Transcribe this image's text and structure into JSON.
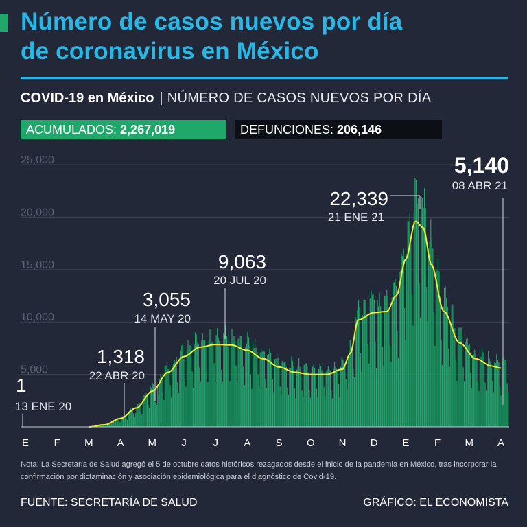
{
  "colors": {
    "background": "#232838",
    "accent": "#27b8e8",
    "bars": "#1fa86a",
    "trend": "#f4ec30",
    "badge_green": "#1fa86a",
    "grid": "#3d4356"
  },
  "header": {
    "title_line1": "Número de casos nuevos por día",
    "title_line2": "de coronavirus en México",
    "subtitle_strong": "COVID-19 en México",
    "subtitle_sep": "|",
    "subtitle_light": "NÚMERO DE CASOS NUEVOS POR DÍA"
  },
  "badges": {
    "accumulated_label": "ACUMULADOS:",
    "accumulated_value": "2,267,019",
    "deaths_label": "DEFUNCIONES:",
    "deaths_value": "206,146"
  },
  "chart_data": {
    "type": "bar",
    "ylim": [
      0,
      25000
    ],
    "yticks": [
      {
        "value": 25000,
        "label": "25,000"
      },
      {
        "value": 20000,
        "label": "20,000"
      },
      {
        "value": 15000,
        "label": "15,000"
      },
      {
        "value": 10000,
        "label": "10,000"
      },
      {
        "value": 5000,
        "label": "5,000"
      }
    ],
    "months": [
      "E",
      "F",
      "M",
      "A",
      "M",
      "J",
      "J",
      "A",
      "S",
      "O",
      "N",
      "D",
      "E",
      "F",
      "M",
      "A"
    ],
    "trend_anchors": [
      {
        "month_pos": 0,
        "value": 0
      },
      {
        "month_pos": 2.0,
        "value": 0
      },
      {
        "month_pos": 2.5,
        "value": 200
      },
      {
        "month_pos": 3.0,
        "value": 800
      },
      {
        "month_pos": 3.5,
        "value": 1800
      },
      {
        "month_pos": 4.0,
        "value": 3400
      },
      {
        "month_pos": 4.5,
        "value": 5200
      },
      {
        "month_pos": 5.0,
        "value": 6700
      },
      {
        "month_pos": 5.5,
        "value": 7600
      },
      {
        "month_pos": 6.0,
        "value": 7850
      },
      {
        "month_pos": 6.5,
        "value": 7800
      },
      {
        "month_pos": 7.0,
        "value": 7300
      },
      {
        "month_pos": 7.5,
        "value": 6500
      },
      {
        "month_pos": 8.0,
        "value": 5700
      },
      {
        "month_pos": 8.5,
        "value": 5200
      },
      {
        "month_pos": 9.0,
        "value": 5000
      },
      {
        "month_pos": 9.5,
        "value": 5000
      },
      {
        "month_pos": 10.0,
        "value": 5500
      },
      {
        "month_pos": 10.25,
        "value": 7000
      },
      {
        "month_pos": 10.5,
        "value": 10200
      },
      {
        "month_pos": 11.0,
        "value": 10900
      },
      {
        "month_pos": 11.4,
        "value": 11000
      },
      {
        "month_pos": 11.7,
        "value": 12500
      },
      {
        "month_pos": 12.0,
        "value": 16000
      },
      {
        "month_pos": 12.3,
        "value": 19600
      },
      {
        "month_pos": 12.55,
        "value": 19000
      },
      {
        "month_pos": 12.8,
        "value": 15500
      },
      {
        "month_pos": 13.2,
        "value": 11000
      },
      {
        "month_pos": 13.7,
        "value": 8000
      },
      {
        "month_pos": 14.2,
        "value": 6500
      },
      {
        "month_pos": 14.7,
        "value": 5800
      },
      {
        "month_pos": 15.0,
        "value": 5600
      }
    ],
    "annotations": [
      {
        "value": "1",
        "date": "13 ENE 20"
      },
      {
        "value": "1,318",
        "date": "22 ABR 20"
      },
      {
        "value": "3,055",
        "date": "14 MAY 20"
      },
      {
        "value": "9,063",
        "date": "20 JUL 20"
      },
      {
        "value": "22,339",
        "date": "21 ENE 21"
      },
      {
        "value": "5,140",
        "date": "08 ABR 21"
      }
    ]
  },
  "footer": {
    "note": "Nota: La Secretaría de Salud agregó el 5 de octubre datos históricos rezagados desde el inicio de la pandemia en México, tras incorporar la confirmación por dictaminación y asociación epidemiológica para el diagnóstico de Covid-19.",
    "source": "FUENTE: SECRETARÍA DE SALUD",
    "credit": "GRÁFICO: EL ECONOMISTA"
  }
}
